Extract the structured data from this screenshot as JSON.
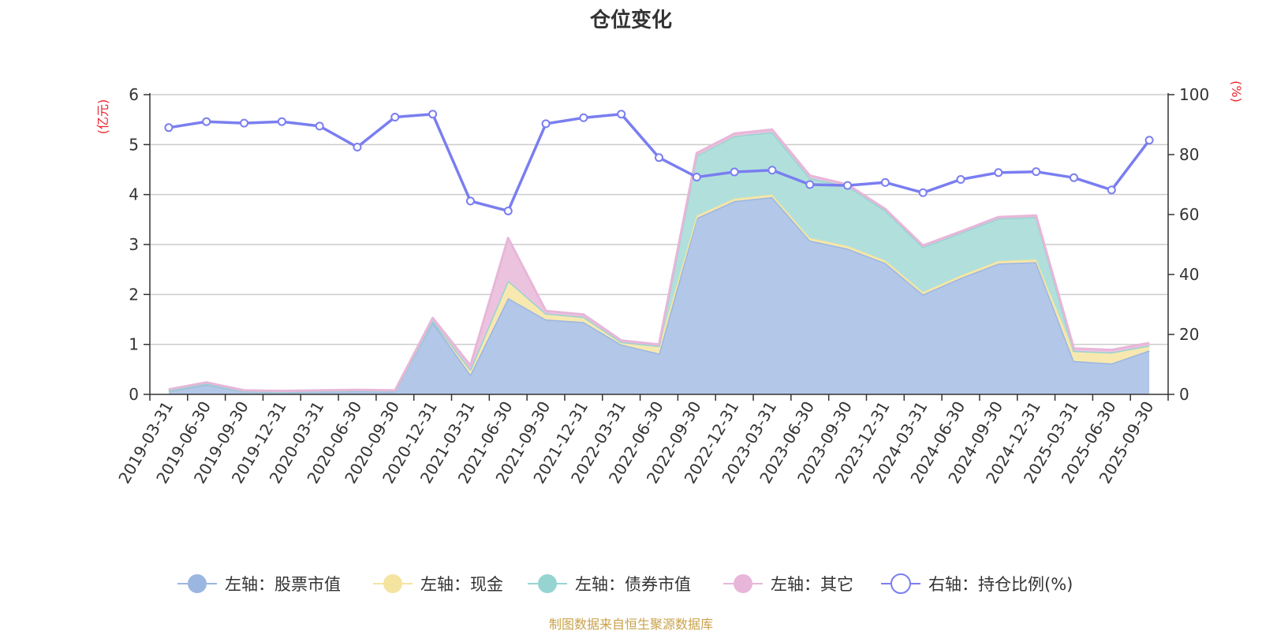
{
  "chart_data": {
    "type": "area",
    "title": "仓位变化",
    "source_note": "制图数据来自恒生聚源数据库",
    "left_axis": {
      "unit": "(亿元)",
      "min": 0,
      "max": 6,
      "ticks": [
        "0",
        "1",
        "2",
        "3",
        "4",
        "5",
        "6"
      ]
    },
    "right_axis": {
      "unit": "(%)",
      "min": 0,
      "max": 100,
      "ticks": [
        "0",
        "20",
        "40",
        "60",
        "80",
        "100"
      ]
    },
    "categories": [
      "2019-03-31",
      "2019-06-30",
      "2019-09-30",
      "2019-12-31",
      "2020-03-31",
      "2020-06-30",
      "2020-09-30",
      "2020-12-31",
      "2021-03-31",
      "2021-06-30",
      "2021-09-30",
      "2021-12-31",
      "2022-03-31",
      "2022-06-30",
      "2022-09-30",
      "2022-12-31",
      "2023-03-31",
      "2023-06-30",
      "2023-09-30",
      "2023-12-31",
      "2024-03-31",
      "2024-06-30",
      "2024-09-30",
      "2024-12-31",
      "2025-03-31",
      "2025-06-30",
      "2025-09-30"
    ],
    "series": [
      {
        "name": "左轴：股票市值",
        "axis": "left",
        "color": "#9bb6e0",
        "fill": "#b3c7e8",
        "values": [
          0.07,
          0.2,
          0.06,
          0.05,
          0.06,
          0.07,
          0.06,
          1.45,
          0.4,
          1.93,
          1.5,
          1.45,
          1.0,
          0.82,
          3.53,
          3.87,
          3.95,
          3.08,
          2.92,
          2.63,
          2.0,
          2.33,
          2.62,
          2.65,
          0.67,
          0.62,
          0.88
        ]
      },
      {
        "name": "左轴：现金",
        "axis": "left",
        "color": "#f4e4a0",
        "fill": "#f7e8b0",
        "values": [
          0.01,
          0.02,
          0.01,
          0.01,
          0.01,
          0.01,
          0.01,
          0.03,
          0.1,
          0.35,
          0.12,
          0.1,
          0.05,
          0.15,
          0.05,
          0.05,
          0.05,
          0.05,
          0.05,
          0.05,
          0.05,
          0.05,
          0.05,
          0.05,
          0.2,
          0.22,
          0.1
        ]
      },
      {
        "name": "左轴：债券市值",
        "axis": "left",
        "color": "#96d4d1",
        "fill": "#b1e0dc",
        "values": [
          0,
          0,
          0,
          0,
          0,
          0,
          0,
          0,
          0,
          0,
          0,
          0,
          0,
          0,
          1.2,
          1.25,
          1.25,
          1.2,
          1.2,
          1.0,
          0.9,
          0.85,
          0.85,
          0.85,
          0,
          0,
          0
        ]
      },
      {
        "name": "左轴：其它",
        "axis": "left",
        "color": "#e7b6d9",
        "fill": "#ecc3df",
        "values": [
          0.02,
          0.02,
          0.01,
          0.01,
          0.01,
          0.01,
          0.01,
          0.05,
          0.08,
          0.85,
          0.05,
          0.05,
          0.03,
          0.03,
          0.05,
          0.05,
          0.05,
          0.05,
          0.03,
          0.03,
          0.03,
          0.03,
          0.03,
          0.03,
          0.05,
          0.05,
          0.05
        ]
      },
      {
        "name": "右轴：持仓比例(%)",
        "axis": "right",
        "color": "#7a7ef0",
        "values": [
          89,
          91,
          90.5,
          91,
          89.5,
          82.5,
          92.5,
          93.5,
          64.5,
          61.2,
          90.3,
          92.3,
          93.5,
          79,
          72.5,
          74.2,
          74.8,
          70,
          69.7,
          70.7,
          67.3,
          71.7,
          74,
          74.3,
          72.3,
          68.2,
          84.8
        ]
      }
    ],
    "legend_position": "bottom-center",
    "grid": true
  }
}
